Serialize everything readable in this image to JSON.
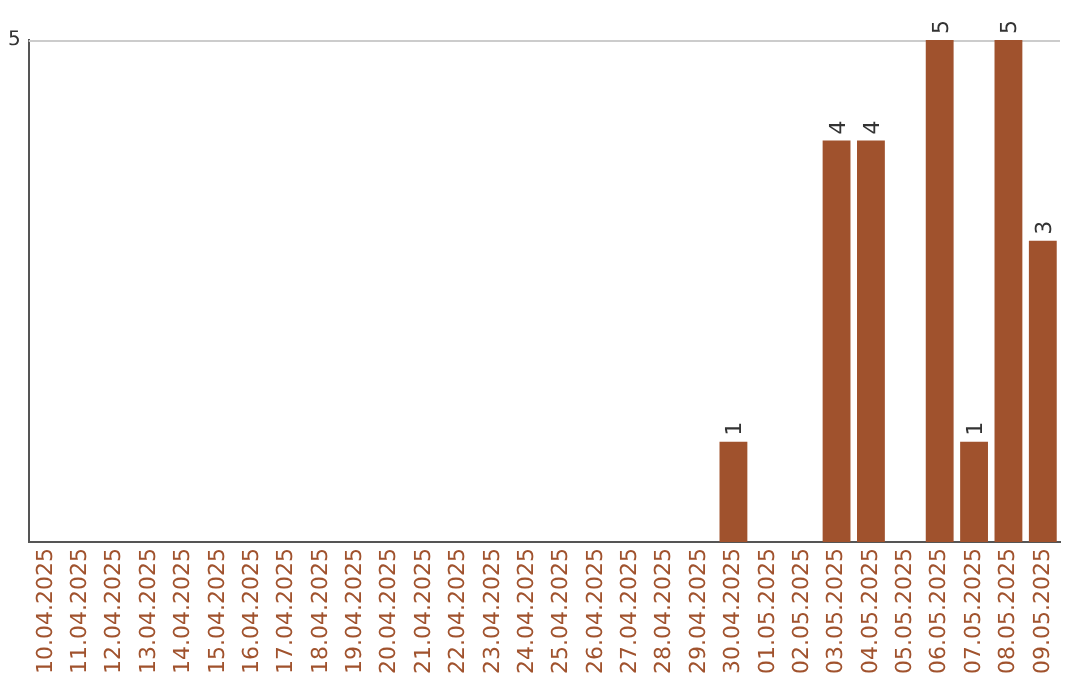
{
  "chart_data": {
    "type": "bar",
    "categories": [
      "10.04.2025",
      "11.04.2025",
      "12.04.2025",
      "13.04.2025",
      "14.04.2025",
      "15.04.2025",
      "16.04.2025",
      "17.04.2025",
      "18.04.2025",
      "19.04.2025",
      "20.04.2025",
      "21.04.2025",
      "22.04.2025",
      "23.04.2025",
      "24.04.2025",
      "25.04.2025",
      "26.04.2025",
      "27.04.2025",
      "28.04.2025",
      "29.04.2025",
      "30.04.2025",
      "01.05.2025",
      "02.05.2025",
      "03.05.2025",
      "04.05.2025",
      "05.05.2025",
      "06.05.2025",
      "07.05.2025",
      "08.05.2025",
      "09.05.2025"
    ],
    "values": [
      null,
      null,
      null,
      null,
      null,
      null,
      null,
      null,
      null,
      null,
      null,
      null,
      null,
      null,
      null,
      null,
      null,
      null,
      null,
      null,
      1,
      null,
      null,
      4,
      4,
      null,
      5,
      1,
      5,
      3
    ],
    "data_labels": true,
    "color": "#a0522d",
    "ylim": [
      0,
      5
    ],
    "yticks": [
      5
    ],
    "legend": false
  }
}
